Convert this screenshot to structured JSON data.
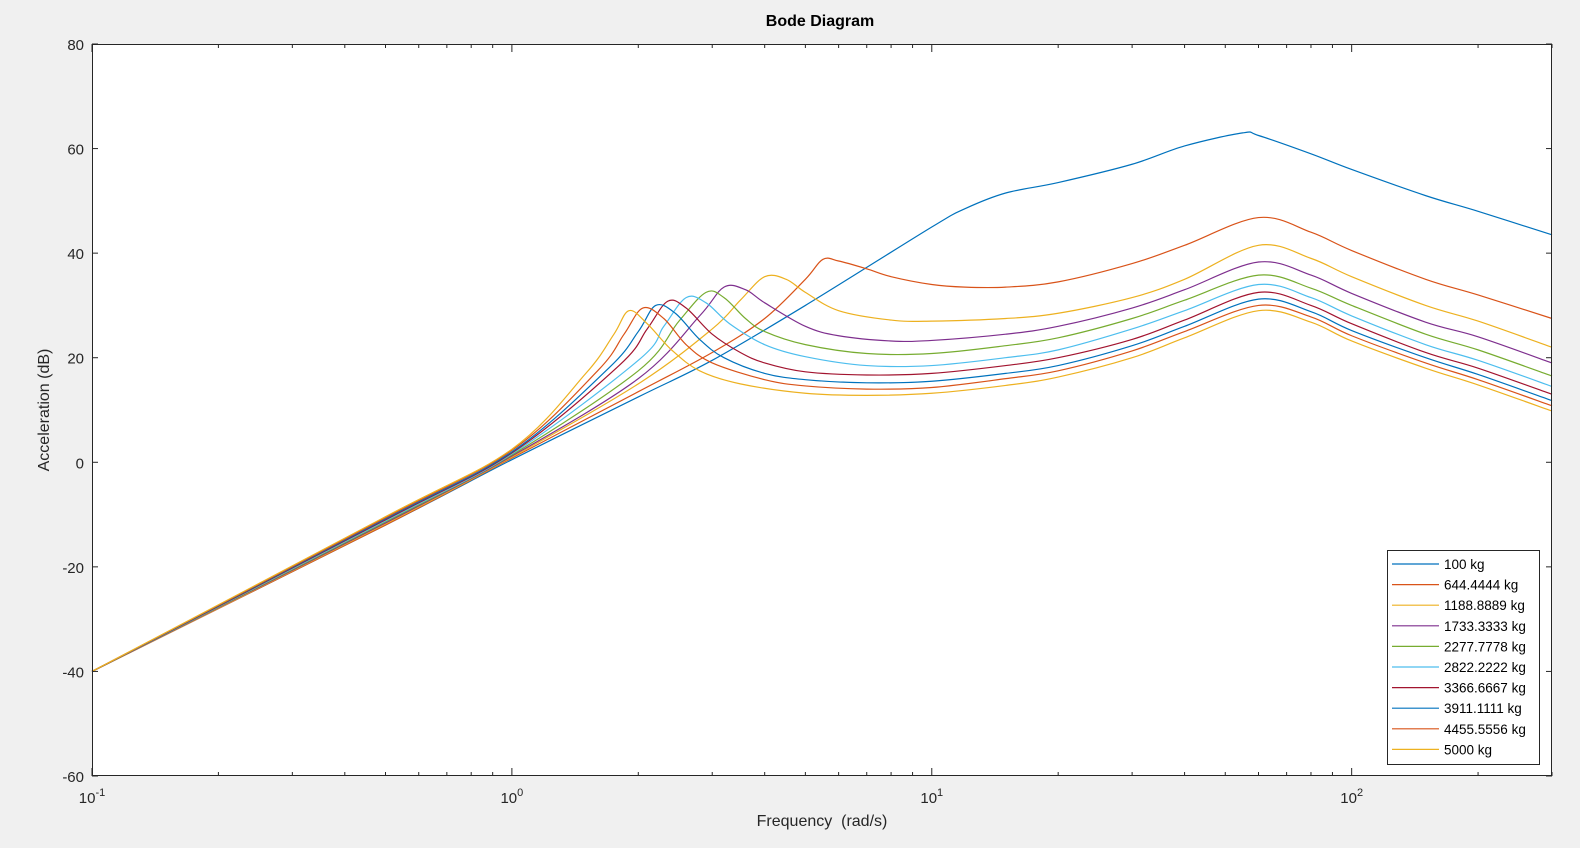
{
  "chart_data": {
    "type": "line",
    "title": "Bode Diagram",
    "xlabel": "Frequency  (rad/s)",
    "ylabel": "Acceleration (dB)",
    "xscale": "log",
    "xlim": [
      0.1,
      300
    ],
    "ylim": [
      -60,
      80
    ],
    "yticks": [
      80,
      60,
      40,
      20,
      0,
      -20,
      -40,
      -60
    ],
    "yticklabels": [
      "80",
      "60",
      "40",
      "20",
      "0",
      "-20",
      "-40",
      "-60"
    ],
    "xticks": [
      {
        "value": 0.1,
        "base": "10",
        "exp": "-1"
      },
      {
        "value": 1,
        "base": "10",
        "exp": "0"
      },
      {
        "value": 10,
        "base": "10",
        "exp": "1"
      },
      {
        "value": 100,
        "base": "10",
        "exp": "2"
      }
    ],
    "grid": false,
    "legend_position": "bottom-right",
    "series": [
      {
        "name": "100 kg",
        "color": "#0072BD",
        "x": [
          0.1,
          0.5,
          1,
          2,
          3,
          5,
          10,
          12,
          15,
          20,
          30,
          40,
          55,
          60,
          80,
          100,
          150,
          200,
          300
        ],
        "y": [
          -40,
          -12,
          0.5,
          12.5,
          19.5,
          30,
          45,
          48.5,
          51.5,
          53.5,
          57,
          60.5,
          63,
          62.5,
          59,
          56,
          51,
          48,
          43.5
        ]
      },
      {
        "name": "644.4444 kg",
        "color": "#D95319",
        "x": [
          0.1,
          0.5,
          1,
          2,
          3,
          4,
          5,
          5.5,
          6,
          7,
          8,
          10,
          12,
          15,
          20,
          30,
          40,
          60,
          80,
          100,
          150,
          200,
          300
        ],
        "y": [
          -40,
          -12,
          0.8,
          13.5,
          21,
          27.5,
          35,
          38.8,
          38.5,
          37,
          35.5,
          34,
          33.5,
          33.5,
          34.5,
          38,
          41.5,
          46.8,
          44,
          40.5,
          35,
          32,
          27.5
        ]
      },
      {
        "name": "1188.8889 kg",
        "color": "#EDB120",
        "x": [
          0.1,
          0.5,
          1,
          2,
          3,
          3.5,
          4,
          4.5,
          5,
          6,
          8,
          10,
          15,
          20,
          30,
          40,
          60,
          80,
          100,
          150,
          200,
          300
        ],
        "y": [
          -40,
          -11.8,
          1,
          15,
          25.5,
          31,
          35.5,
          35,
          32.5,
          29,
          27.2,
          27,
          27.5,
          28.5,
          31.5,
          35,
          41.5,
          39,
          35.5,
          30,
          27,
          22
        ]
      },
      {
        "name": "1733.3333 kg",
        "color": "#7E2F8E",
        "x": [
          0.1,
          0.5,
          1,
          2,
          2.8,
          3.2,
          3.6,
          4,
          5,
          6,
          8,
          10,
          15,
          20,
          30,
          40,
          60,
          80,
          100,
          150,
          200,
          300
        ],
        "y": [
          -40,
          -11.6,
          1.2,
          16,
          28,
          33.5,
          33,
          30.5,
          26,
          24.2,
          23.2,
          23.3,
          24.5,
          26,
          29.5,
          33,
          38.3,
          35.8,
          32.3,
          26.8,
          24,
          19
        ]
      },
      {
        "name": "2277.7778 kg",
        "color": "#77AC30",
        "x": [
          0.1,
          0.5,
          1,
          2,
          2.5,
          2.9,
          3.2,
          3.6,
          4,
          5,
          7,
          10,
          15,
          20,
          30,
          40,
          60,
          80,
          100,
          150,
          200,
          300
        ],
        "y": [
          -40,
          -11.4,
          1.4,
          17.5,
          27,
          32.5,
          31.5,
          27.5,
          25,
          22.5,
          20.8,
          20.8,
          22.3,
          23.8,
          27.5,
          31,
          35.8,
          33.3,
          30,
          24.5,
          21.5,
          16.5
        ]
      },
      {
        "name": "2822.2222 kg",
        "color": "#4DBEEE",
        "x": [
          0.1,
          0.5,
          1,
          2,
          2.3,
          2.6,
          2.9,
          3.3,
          4,
          5,
          7,
          10,
          15,
          20,
          30,
          40,
          60,
          80,
          100,
          150,
          200,
          300
        ],
        "y": [
          -40,
          -11.2,
          1.6,
          19.5,
          26,
          31.5,
          30.5,
          26.5,
          22.5,
          20.2,
          18.5,
          18.5,
          20,
          21.5,
          25.5,
          29,
          34,
          31.5,
          28,
          22.5,
          19.5,
          14.5
        ]
      },
      {
        "name": "3366.6667 kg",
        "color": "#A2142F",
        "x": [
          0.1,
          0.5,
          1,
          1.8,
          2.1,
          2.35,
          2.6,
          3,
          3.5,
          4,
          5,
          7,
          10,
          15,
          20,
          30,
          40,
          60,
          80,
          100,
          150,
          200,
          300
        ],
        "y": [
          -40,
          -11,
          1.8,
          18.5,
          25.5,
          30.8,
          29.5,
          24.5,
          21,
          19,
          17.3,
          16.7,
          17,
          18.5,
          20,
          23.5,
          27.2,
          32.5,
          30,
          26.5,
          21,
          18,
          13
        ]
      },
      {
        "name": "3911.1111 kg",
        "color": "#0072BD",
        "x": [
          0.1,
          0.5,
          1,
          1.7,
          2,
          2.2,
          2.45,
          2.8,
          3.2,
          4,
          5,
          7,
          10,
          15,
          20,
          30,
          40,
          60,
          80,
          100,
          150,
          200,
          300
        ],
        "y": [
          -40,
          -10.8,
          2,
          18,
          25,
          30,
          28.5,
          23.5,
          20,
          17,
          15.8,
          15.2,
          15.5,
          17,
          18.5,
          22.3,
          26,
          31.2,
          28.8,
          25.2,
          20,
          16.8,
          11.8
        ]
      },
      {
        "name": "4455.5556 kg",
        "color": "#D95319",
        "x": [
          0.1,
          0.5,
          1,
          1.6,
          1.85,
          2.05,
          2.3,
          2.6,
          3,
          4,
          5,
          7,
          10,
          15,
          20,
          30,
          40,
          60,
          80,
          100,
          150,
          200,
          300
        ],
        "y": [
          -40,
          -10.6,
          2.3,
          17.5,
          24.5,
          29.5,
          27.5,
          22.5,
          19,
          15.8,
          14.6,
          14,
          14.3,
          16,
          17.5,
          21.3,
          25,
          30,
          27.8,
          24.2,
          19,
          15.8,
          10.8
        ]
      },
      {
        "name": "5000 kg",
        "color": "#EDB120",
        "x": [
          0.1,
          0.5,
          1,
          1.5,
          1.75,
          1.9,
          2.1,
          2.4,
          2.8,
          3.5,
          5,
          7,
          10,
          15,
          20,
          30,
          40,
          60,
          80,
          100,
          150,
          200,
          300
        ],
        "y": [
          -40,
          -10.4,
          2.5,
          17,
          24.5,
          29,
          26.5,
          21.5,
          17.5,
          15,
          13.2,
          12.8,
          13.2,
          14.7,
          16.3,
          20,
          23.8,
          29,
          26.8,
          23.2,
          18,
          14.8,
          9.8
        ]
      }
    ]
  }
}
